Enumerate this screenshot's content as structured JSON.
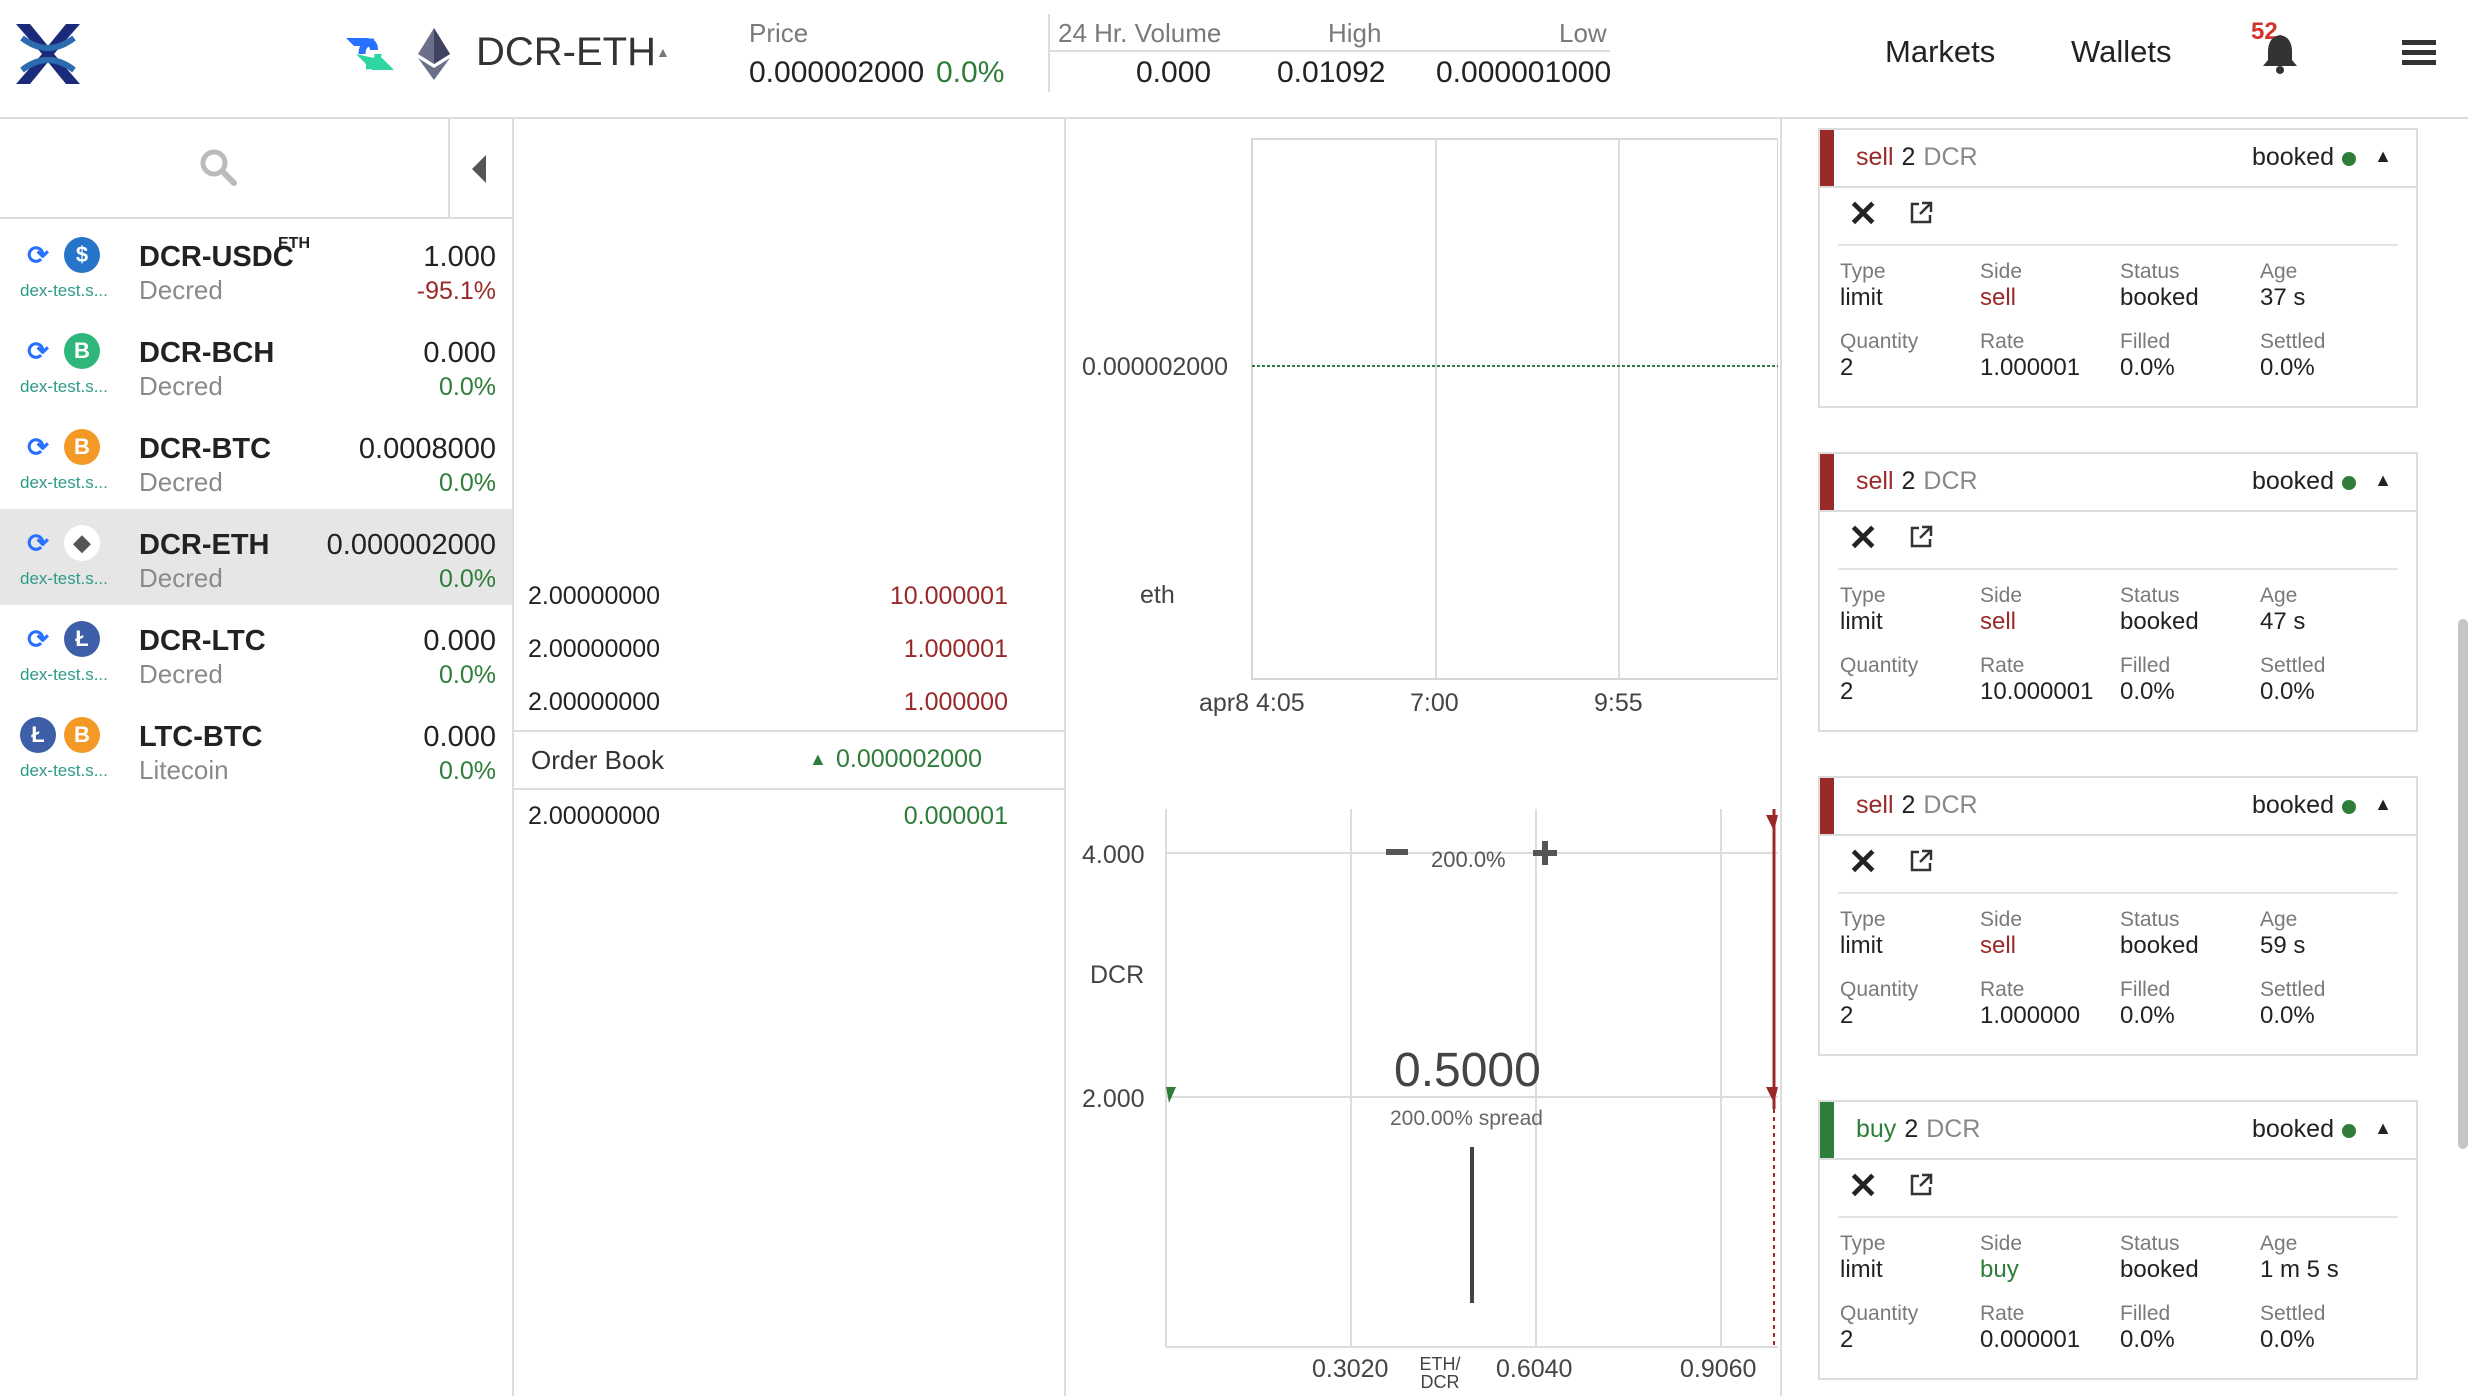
{
  "header": {
    "market": "DCR-ETH",
    "price_label": "Price",
    "price_value": "0.000002000",
    "price_change": "0.0%",
    "volume_label": "24 Hr. Volume",
    "volume_value": "0.000",
    "high_label": "High",
    "high_value": "0.01092",
    "low_label": "Low",
    "low_value": "0.000001000",
    "nav_markets": "Markets",
    "nav_wallets": "Wallets",
    "notification_count": "52"
  },
  "markets": [
    {
      "name": "DCR-USDC",
      "sup": "ETH",
      "sub": "Decred",
      "host": "dex-test.s...",
      "price": "1.000",
      "change": "-95.1%",
      "change_color": "#9a2a2a",
      "quote_icon": "usdc-icon",
      "active": false
    },
    {
      "name": "DCR-BCH",
      "sup": "",
      "sub": "Decred",
      "host": "dex-test.s...",
      "price": "0.000",
      "change": "0.0%",
      "change_color": "#2f7d3a",
      "quote_icon": "bch-icon",
      "active": false
    },
    {
      "name": "DCR-BTC",
      "sup": "",
      "sub": "Decred",
      "host": "dex-test.s...",
      "price": "0.0008000",
      "change": "0.0%",
      "change_color": "#2f7d3a",
      "quote_icon": "btc-icon",
      "active": false
    },
    {
      "name": "DCR-ETH",
      "sup": "",
      "sub": "Decred",
      "host": "dex-test.s...",
      "price": "0.000002000",
      "change": "0.0%",
      "change_color": "#2f7d3a",
      "quote_icon": "eth-icon",
      "active": true
    },
    {
      "name": "DCR-LTC",
      "sup": "",
      "sub": "Decred",
      "host": "dex-test.s...",
      "price": "0.000",
      "change": "0.0%",
      "change_color": "#2f7d3a",
      "quote_icon": "ltc-icon",
      "active": false
    },
    {
      "name": "LTC-BTC",
      "sup": "",
      "sub": "Litecoin",
      "host": "dex-test.s...",
      "price": "0.000",
      "change": "0.0%",
      "change_color": "#2f7d3a",
      "quote_icon": "btc-icon",
      "active": false
    }
  ],
  "orderbook": {
    "title": "Order Book",
    "mid_price": "0.000002000",
    "sells": [
      {
        "qty": "2.00000000",
        "rate": "10.000001"
      },
      {
        "qty": "2.00000000",
        "rate": "1.000001"
      },
      {
        "qty": "2.00000000",
        "rate": "1.000000"
      }
    ],
    "buys": [
      {
        "qty": "2.00000000",
        "rate": "0.000001"
      }
    ]
  },
  "candle_chart": {
    "y_label": "eth",
    "y_tick": "0.000002000",
    "x_ticks": [
      "apr8 4:05",
      "7:00",
      "9:55"
    ]
  },
  "depth_chart": {
    "y_label": "DCR",
    "y_ticks": [
      "4.000",
      "2.000"
    ],
    "x_ticks": [
      "0.3020",
      "0.6040",
      "0.9060"
    ],
    "x_unit": "ETH/ DCR",
    "zoom": "200.0%",
    "mid_value": "0.5000",
    "spread": "200.00% spread"
  },
  "orders": [
    {
      "side": "sell",
      "qty": "2",
      "asset": "DCR",
      "status": "booked",
      "type": "limit",
      "age": "37 s",
      "quantity": "2",
      "rate": "1.000001",
      "filled": "0.0%",
      "settled": "0.0%"
    },
    {
      "side": "sell",
      "qty": "2",
      "asset": "DCR",
      "status": "booked",
      "type": "limit",
      "age": "47 s",
      "quantity": "2",
      "rate": "10.000001",
      "filled": "0.0%",
      "settled": "0.0%"
    },
    {
      "side": "sell",
      "qty": "2",
      "asset": "DCR",
      "status": "booked",
      "type": "limit",
      "age": "59 s",
      "quantity": "2",
      "rate": "1.000000",
      "filled": "0.0%",
      "settled": "0.0%"
    },
    {
      "side": "buy",
      "qty": "2",
      "asset": "DCR",
      "status": "booked",
      "type": "limit",
      "age": "1 m 5 s",
      "quantity": "2",
      "rate": "0.000001",
      "filled": "0.0%",
      "settled": "0.0%"
    }
  ],
  "order_labels": {
    "type": "Type",
    "side": "Side",
    "status": "Status",
    "age": "Age",
    "quantity": "Quantity",
    "rate": "Rate",
    "filled": "Filled",
    "settled": "Settled"
  },
  "colors": {
    "sell": "#9a2a2a",
    "buy": "#2f7d3a",
    "accent": "#1b2a7a"
  }
}
